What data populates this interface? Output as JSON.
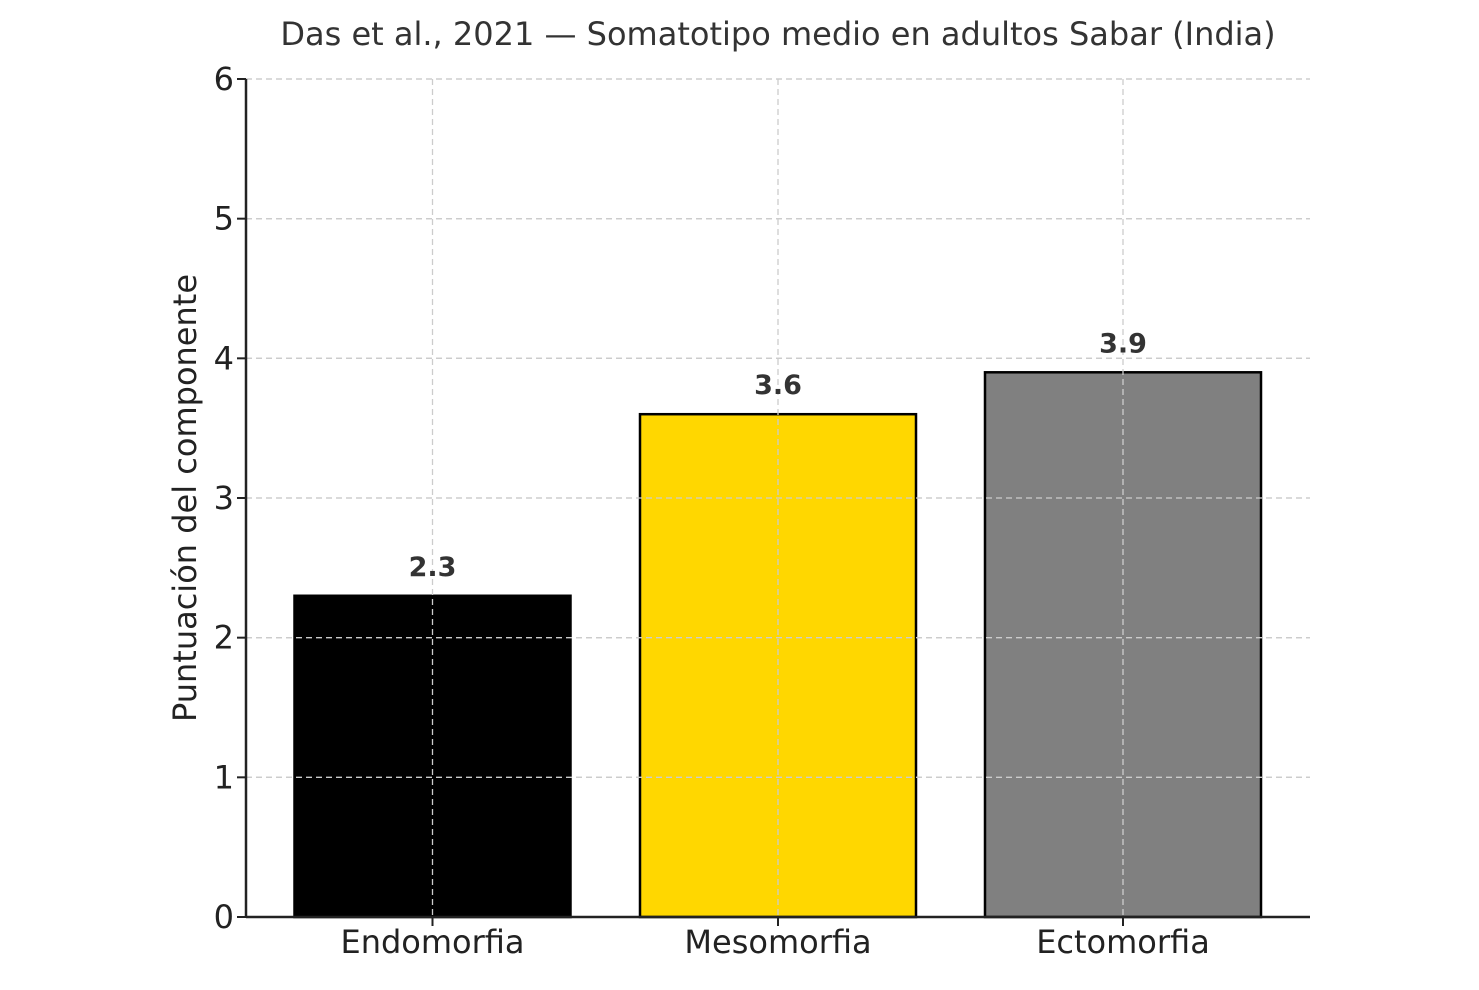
{
  "chart_data": {
    "type": "bar",
    "title": "Das et al., 2021 — Somatotipo medio en adultos Sabar (India)",
    "xlabel": "",
    "ylabel": "Puntuación del componente",
    "categories": [
      "Endomorfia",
      "Mesomorfia",
      "Ectomorfia"
    ],
    "values": [
      2.3,
      3.6,
      3.9
    ],
    "value_labels": [
      "2.3",
      "3.6",
      "3.9"
    ],
    "colors": [
      "#000000",
      "#FFD700",
      "#808080"
    ],
    "edge_color": "#000000",
    "ylim": [
      0,
      6
    ],
    "yticks": [
      0,
      1,
      2,
      3,
      4,
      5,
      6
    ],
    "ytick_labels": [
      "0",
      "1",
      "2",
      "3",
      "4",
      "5",
      "6"
    ],
    "grid": true,
    "legend": false
  }
}
